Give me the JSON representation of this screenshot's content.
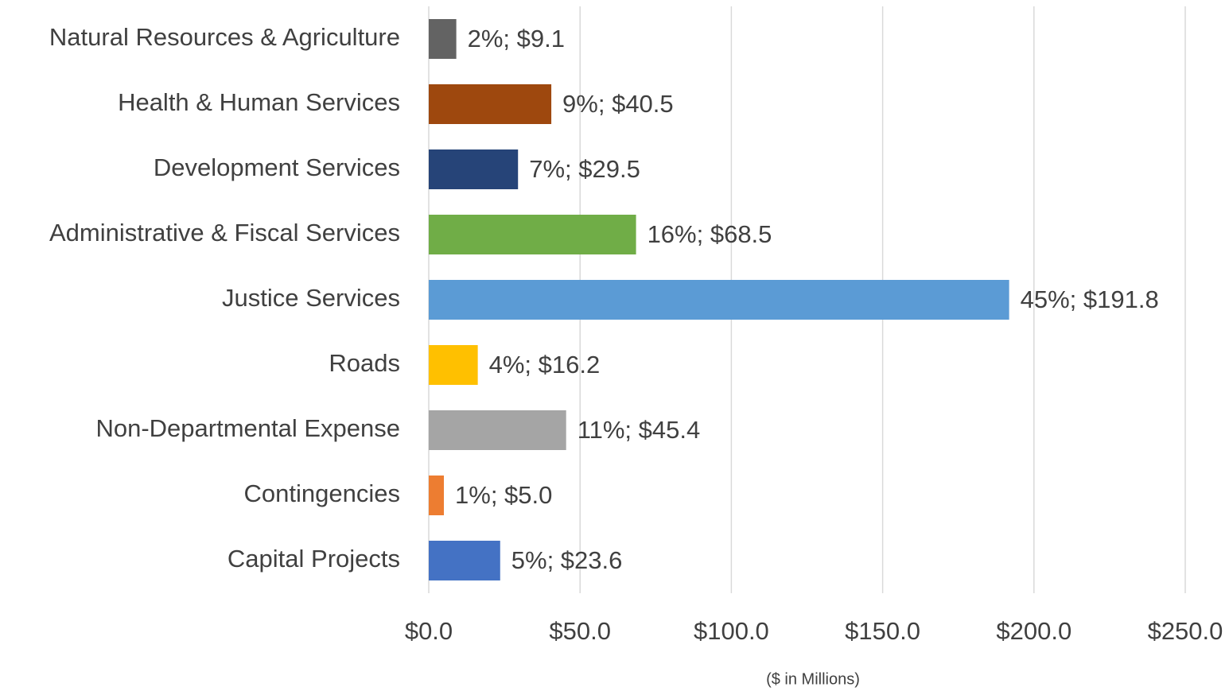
{
  "chart_data": {
    "type": "bar",
    "orientation": "horizontal",
    "categories": [
      "Natural Resources & Agriculture",
      "Health & Human Services",
      "Development Services",
      "Administrative & Fiscal Services",
      "Justice Services",
      "Roads",
      "Non-Departmental Expense",
      "Contingencies",
      "Capital Projects"
    ],
    "values": [
      9.1,
      40.5,
      29.5,
      68.5,
      191.8,
      16.2,
      45.4,
      5.0,
      23.6
    ],
    "value_labels": [
      "2%; $9.1",
      "9%; $40.5",
      "7%; $29.5",
      "16%; $68.5",
      "45%; $191.8",
      "4%; $16.2",
      "11%; $45.4",
      "1%; $5.0",
      "5%; $23.6"
    ],
    "colors": [
      "#636363",
      "#9e480e",
      "#264478",
      "#70ad47",
      "#5b9bd5",
      "#ffc000",
      "#a5a5a5",
      "#ed7d31",
      "#4472c4"
    ],
    "xlabel": "($ in Millions)",
    "xlim": [
      0,
      250
    ],
    "xticks": [
      {
        "value": 0,
        "label": "$0.0"
      },
      {
        "value": 50,
        "label": "$50.0"
      },
      {
        "value": 100,
        "label": "$100.0"
      },
      {
        "value": 150,
        "label": "$150.0"
      },
      {
        "value": 200,
        "label": "$200.0"
      },
      {
        "value": 250,
        "label": "$250.0"
      }
    ],
    "grid": true
  }
}
